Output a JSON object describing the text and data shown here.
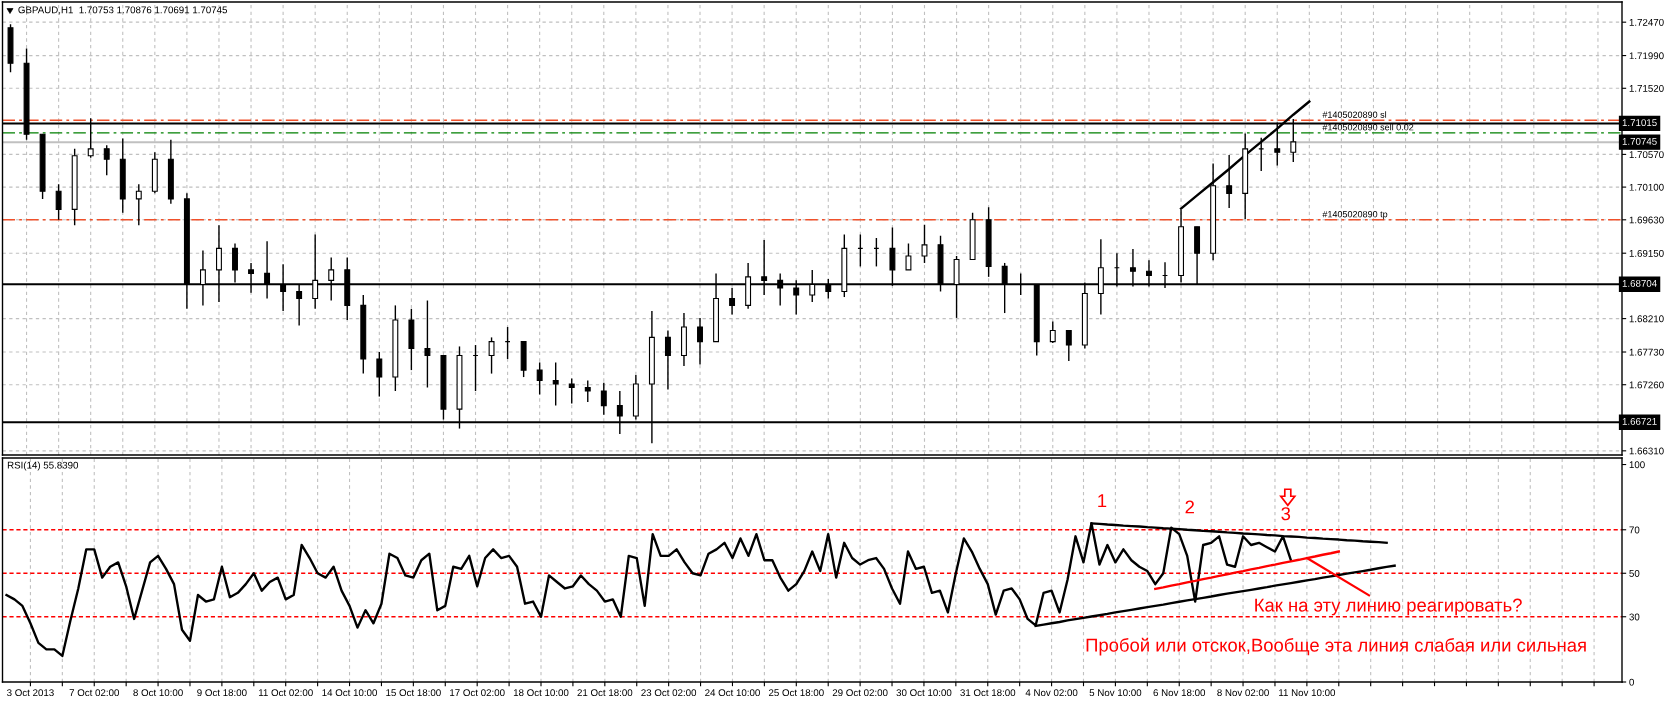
{
  "chart_data": [
    {
      "type": "candlestick",
      "title": "GBPAUD,H1  1.70753 1.70876 1.70691 1.70745",
      "color": "#000000",
      "categories": [
        null,
        null,
        null,
        null,
        null,
        null,
        null,
        null,
        null,
        null,
        null,
        null,
        null,
        null,
        null,
        null,
        null,
        null,
        null,
        null,
        null,
        null,
        null,
        null,
        null,
        null,
        null,
        null,
        null,
        null,
        null,
        null,
        null,
        null,
        null,
        null,
        null,
        null,
        null,
        null,
        null,
        null,
        null,
        null,
        null,
        null,
        null,
        null,
        null,
        null,
        null,
        null,
        null,
        null,
        null,
        null,
        null,
        null,
        null,
        null,
        null,
        null,
        null,
        null,
        null,
        null,
        null,
        null,
        null,
        null,
        null,
        null,
        null,
        null,
        null,
        null,
        null,
        null,
        null,
        null,
        null,
        null,
        null,
        null,
        null,
        null,
        null,
        null,
        null,
        null,
        null,
        null,
        null,
        null,
        null,
        null,
        null,
        null,
        null,
        null,
        null
      ],
      "ohlc": [
        [
          1.7239,
          1.7244,
          1.7175,
          1.7188
        ],
        [
          1.7188,
          1.7209,
          1.7078,
          1.7086
        ],
        [
          1.7086,
          1.7086,
          1.6993,
          1.7004
        ],
        [
          1.7004,
          1.7014,
          1.6963,
          1.6978
        ],
        [
          1.6978,
          1.7065,
          1.6955,
          1.7055
        ],
        [
          1.7055,
          1.7109,
          1.7052,
          1.7065
        ],
        [
          1.7065,
          1.707,
          1.7027,
          1.705
        ],
        [
          1.705,
          1.708,
          1.6973,
          1.6993
        ],
        [
          1.6993,
          1.7014,
          1.6955,
          1.7004
        ],
        [
          1.7004,
          1.706,
          1.7001,
          1.705
        ],
        [
          1.705,
          1.7078,
          1.6986,
          1.6993
        ],
        [
          1.6993,
          1.7001,
          1.6835,
          1.687
        ],
        [
          1.687,
          1.6919,
          1.684,
          1.6891
        ],
        [
          1.6891,
          1.6955,
          1.6845,
          1.6922
        ],
        [
          1.6922,
          1.6929,
          1.6873,
          1.6891
        ],
        [
          1.6891,
          1.6901,
          1.6858,
          1.6886
        ],
        [
          1.6886,
          1.6932,
          1.685,
          1.687
        ],
        [
          1.687,
          1.6899,
          1.6832,
          1.686
        ],
        [
          1.686,
          1.687,
          1.6811,
          1.685
        ],
        [
          1.685,
          1.6942,
          1.6835,
          1.6876
        ],
        [
          1.6876,
          1.6909,
          1.6847,
          1.6891
        ],
        [
          1.6891,
          1.6909,
          1.6819,
          1.684
        ],
        [
          1.684,
          1.6855,
          1.6742,
          1.6763
        ],
        [
          1.6763,
          1.6773,
          1.6709,
          1.6737
        ],
        [
          1.6737,
          1.684,
          1.6717,
          1.6819
        ],
        [
          1.6819,
          1.6835,
          1.6747,
          1.6778
        ],
        [
          1.6778,
          1.6847,
          1.6722,
          1.6768
        ],
        [
          1.6768,
          1.6768,
          1.6676,
          1.6691
        ],
        [
          1.6691,
          1.6781,
          1.6663,
          1.6768
        ],
        [
          1.6768,
          1.6783,
          1.6717,
          1.6768
        ],
        [
          1.6768,
          1.6794,
          1.6742,
          1.6788
        ],
        [
          1.6788,
          1.6809,
          1.6763,
          1.6788
        ],
        [
          1.6788,
          1.6788,
          1.6737,
          1.6747
        ],
        [
          1.6747,
          1.6758,
          1.6712,
          1.6732
        ],
        [
          1.6732,
          1.6758,
          1.6696,
          1.6727
        ],
        [
          1.6727,
          1.6735,
          1.6699,
          1.6722
        ],
        [
          1.6722,
          1.6732,
          1.6701,
          1.6717
        ],
        [
          1.6717,
          1.6729,
          1.6683,
          1.6696
        ],
        [
          1.6696,
          1.6717,
          1.6655,
          1.6681
        ],
        [
          1.6681,
          1.674,
          1.6676,
          1.6727
        ],
        [
          1.6727,
          1.6832,
          1.6642,
          1.6794
        ],
        [
          1.6794,
          1.6804,
          1.6719,
          1.6768
        ],
        [
          1.6768,
          1.6829,
          1.6753,
          1.6809
        ],
        [
          1.6809,
          1.6822,
          1.6755,
          1.6788
        ],
        [
          1.6788,
          1.6886,
          1.6788,
          1.685
        ],
        [
          1.685,
          1.6865,
          1.6827,
          1.684
        ],
        [
          1.684,
          1.6901,
          1.6835,
          1.6881
        ],
        [
          1.6881,
          1.6934,
          1.6855,
          1.6876
        ],
        [
          1.6876,
          1.6886,
          1.684,
          1.6865
        ],
        [
          1.6865,
          1.6876,
          1.6827,
          1.6855
        ],
        [
          1.6855,
          1.6891,
          1.6845,
          1.687
        ],
        [
          1.687,
          1.6878,
          1.685,
          1.686
        ],
        [
          1.686,
          1.6942,
          1.6852,
          1.6922
        ],
        [
          1.6922,
          1.6942,
          1.6896,
          1.6922
        ],
        [
          1.6922,
          1.6937,
          1.6896,
          1.6922
        ],
        [
          1.6922,
          1.6952,
          1.6868,
          1.6891
        ],
        [
          1.6891,
          1.6929,
          1.6891,
          1.6911
        ],
        [
          1.6911,
          1.6956,
          1.6901,
          1.6927
        ],
        [
          1.6927,
          1.694,
          1.686,
          1.687
        ],
        [
          1.687,
          1.6911,
          1.6822,
          1.6906
        ],
        [
          1.6906,
          1.6973,
          1.6906,
          1.6963
        ],
        [
          1.6963,
          1.6981,
          1.6881,
          1.6896
        ],
        [
          1.6896,
          1.6901,
          1.6829,
          1.687
        ],
        [
          1.687,
          1.6886,
          1.6855,
          1.687
        ],
        [
          1.687,
          1.687,
          1.6768,
          1.6788
        ],
        [
          1.6788,
          1.6817,
          1.6786,
          1.6804
        ],
        [
          1.6804,
          1.6804,
          1.676,
          1.6783
        ],
        [
          1.6783,
          1.6873,
          1.6778,
          1.6857
        ],
        [
          1.6857,
          1.6935,
          1.6827,
          1.6894
        ],
        [
          1.6894,
          1.6915,
          1.6867,
          1.6894
        ],
        [
          1.6894,
          1.6921,
          1.6867,
          1.6889
        ],
        [
          1.6889,
          1.6905,
          1.6867,
          1.6883
        ],
        [
          1.6883,
          1.6902,
          1.6865,
          1.6883
        ],
        [
          1.6883,
          1.6977,
          1.6873,
          1.6953
        ],
        [
          1.6953,
          1.6953,
          1.687,
          1.6915
        ],
        [
          1.6915,
          1.7044,
          1.6905,
          1.7012
        ],
        [
          1.7012,
          1.7056,
          1.698,
          1.7001
        ],
        [
          1.7001,
          1.7087,
          1.6964,
          1.7065
        ],
        [
          1.7065,
          1.7081,
          1.7033,
          1.7065
        ],
        [
          1.7065,
          1.7103,
          1.7041,
          1.706
        ],
        [
          1.706,
          1.7108,
          1.7046,
          1.7075
        ],
        null,
        null,
        null,
        null,
        null,
        null,
        null,
        null,
        null,
        null,
        null,
        null,
        null,
        null,
        null,
        null,
        null,
        null,
        null,
        null
      ],
      "series": [
        {
          "type": "line",
          "color": "#000000",
          "values": [
            null,
            null,
            null,
            null,
            null,
            null,
            null,
            null,
            null,
            null,
            null,
            null,
            null,
            null,
            null,
            null,
            null,
            null,
            null,
            null,
            null,
            null,
            null,
            null,
            null,
            null,
            null,
            null,
            null,
            null,
            null,
            null,
            null,
            null,
            null,
            null,
            null,
            null,
            null,
            null,
            null,
            null,
            null,
            null,
            null,
            null,
            null,
            null,
            null,
            null,
            null,
            null,
            null,
            null,
            null,
            null,
            null,
            null,
            null,
            null,
            null,
            null,
            null,
            null,
            null,
            null,
            null,
            null,
            null,
            null,
            null,
            null,
            null,
            1.6979,
            1.6998,
            1.7017,
            1.7036,
            1.7056,
            1.7075,
            1.7094,
            1.7114,
            1.7133,
            null,
            null,
            null,
            null,
            null,
            null,
            null,
            null,
            null,
            null,
            null,
            null,
            null,
            null,
            null,
            null,
            null,
            null,
            null
          ]
        }
      ],
      "ylim": [
        1.6625,
        1.7276
      ],
      "yticks": [
        {
          "value": 1.7247,
          "label": "1.72470"
        },
        {
          "value": 1.7199,
          "label": "1.71990"
        },
        {
          "value": 1.7152,
          "label": "1.71520"
        },
        {
          "value": 1.7057,
          "label": "1.70570"
        },
        {
          "value": 1.701,
          "label": "1.70100"
        },
        {
          "value": 1.6963,
          "label": "1.69630"
        },
        {
          "value": 1.6915,
          "label": "1.69150"
        },
        {
          "value": 1.6821,
          "label": "1.68210"
        },
        {
          "value": 1.6773,
          "label": "1.67730"
        },
        {
          "value": 1.6726,
          "label": "1.67260"
        },
        {
          "value": 1.6631,
          "label": "1.66310"
        }
      ],
      "grid": true,
      "ref_lines": [
        {
          "axis": "y",
          "value": 1.7106,
          "label": "#1405020890 sl",
          "color": "#f0502a",
          "line_style": "dashed"
        },
        {
          "axis": "y",
          "value": 1.71015,
          "label": "1.71015",
          "color": "#000000",
          "line_style": "solid"
        },
        {
          "axis": "y",
          "value": 1.7088,
          "label": "#1405020890 sell 0.02",
          "color": "#008000",
          "line_style": "dashed"
        },
        {
          "axis": "y",
          "value": 1.70745,
          "label": "1.70745",
          "color": "#c0c0c0",
          "line_style": "solid"
        },
        {
          "axis": "y",
          "value": 1.6963,
          "label": "#1405020890 tp",
          "color": "#f0502a",
          "line_style": "dashed"
        },
        {
          "axis": "y",
          "value": 1.68704,
          "label": "1.68704",
          "color": "#000000",
          "line_style": "solid"
        },
        {
          "axis": "y",
          "value": 1.66721,
          "label": "1.66721",
          "color": "#000000",
          "line_style": "solid"
        }
      ]
    },
    {
      "type": "line",
      "title": "RSI(14) 55.8390",
      "categories": [
        null,
        null,
        null,
        "3 Oct 2013",
        null,
        null,
        null,
        null,
        null,
        null,
        null,
        "7 Oct 02:00",
        null,
        null,
        null,
        null,
        null,
        null,
        null,
        "8 Oct 10:00",
        null,
        null,
        null,
        null,
        null,
        null,
        null,
        "9 Oct 18:00",
        null,
        null,
        null,
        null,
        null,
        null,
        null,
        "11 Oct 02:00",
        null,
        null,
        null,
        null,
        null,
        null,
        null,
        "14 Oct 10:00",
        null,
        null,
        null,
        null,
        null,
        null,
        null,
        "15 Oct 18:00",
        null,
        null,
        null,
        null,
        null,
        null,
        null,
        "17 Oct 02:00",
        null,
        null,
        null,
        null,
        null,
        null,
        null,
        "18 Oct 10:00",
        null,
        null,
        null,
        null,
        null,
        null,
        null,
        "21 Oct 18:00",
        null,
        null,
        null,
        null,
        null,
        null,
        null,
        "23 Oct 02:00",
        null,
        null,
        null,
        null,
        null,
        null,
        null,
        "24 Oct 10:00",
        null,
        null,
        null,
        null,
        null,
        null,
        null,
        "25 Oct 18:00",
        null,
        null,
        null,
        null,
        null,
        null,
        null,
        "29 Oct 02:00",
        null,
        null,
        null,
        null,
        null,
        null,
        null,
        "30 Oct 10:00",
        null,
        null,
        null,
        null,
        null,
        null,
        null,
        "31 Oct 18:00",
        null,
        null,
        null,
        null,
        null,
        null,
        null,
        "4 Nov 02:00",
        null,
        null,
        null,
        null,
        null,
        null,
        null,
        "5 Nov 10:00",
        null,
        null,
        null,
        null,
        null,
        null,
        null,
        "6 Nov 18:00",
        null,
        null,
        null,
        null,
        null,
        null,
        null,
        "8 Nov 02:00",
        null,
        null,
        null,
        null,
        null,
        null,
        null,
        "11 Nov 10:00",
        null,
        null,
        null,
        null,
        null,
        null,
        null,
        null,
        null,
        null,
        null,
        null,
        null,
        null,
        null,
        null,
        null,
        null,
        null,
        null,
        null,
        null,
        null,
        null,
        null,
        null,
        null,
        null,
        null,
        null,
        null,
        null,
        null,
        null,
        null,
        null,
        null,
        null,
        null
      ],
      "series": [
        {
          "color": "#000000",
          "values": [
            40,
            38,
            35,
            27,
            18,
            15,
            15,
            12,
            28,
            43,
            61,
            61,
            48,
            53,
            55,
            44,
            29,
            42,
            55,
            58,
            52,
            45,
            24,
            19,
            40,
            37,
            38,
            53,
            39,
            41,
            45,
            50,
            42,
            46,
            48,
            38,
            40,
            63,
            57,
            50,
            48,
            53,
            42,
            35,
            25,
            33,
            27,
            36,
            59,
            57,
            49,
            48,
            56,
            59,
            33,
            35,
            53,
            52,
            58,
            44,
            57,
            61,
            57,
            58,
            53,
            36,
            37,
            30,
            49,
            46,
            43,
            44,
            49,
            45,
            42,
            37,
            38,
            30,
            58,
            57,
            35,
            68,
            58,
            58,
            61,
            55,
            50,
            49,
            59,
            61,
            64,
            57,
            66,
            58,
            68,
            56,
            56,
            48,
            42,
            45,
            51,
            60,
            51,
            68,
            48,
            64,
            57,
            54,
            56,
            57,
            52,
            43,
            36,
            60,
            52,
            53,
            41,
            42,
            32,
            50,
            66,
            60,
            52,
            45,
            31,
            42,
            43,
            38,
            29,
            26,
            41,
            42,
            32,
            47,
            67,
            55,
            73,
            54,
            63,
            55,
            61,
            56,
            53,
            51,
            45,
            50,
            71,
            68,
            58,
            37,
            63,
            64,
            67,
            54,
            53,
            67,
            63,
            64,
            62,
            60,
            67,
            56,
            null,
            null,
            null,
            null,
            null,
            null,
            null,
            null,
            null,
            null,
            null,
            null,
            null,
            null,
            null,
            null,
            null,
            null,
            null,
            null,
            null,
            null,
            null,
            null,
            null,
            null,
            null,
            null,
            null,
            null,
            null,
            null,
            null,
            null,
            null,
            null,
            null,
            null,
            null,
            null,
            null
          ]
        },
        {
          "color": "#000000",
          "values": [
            null,
            null,
            null,
            null,
            null,
            null,
            null,
            null,
            null,
            null,
            null,
            null,
            null,
            null,
            null,
            null,
            null,
            null,
            null,
            null,
            null,
            null,
            null,
            null,
            null,
            null,
            null,
            null,
            null,
            null,
            null,
            null,
            null,
            null,
            null,
            null,
            null,
            null,
            null,
            null,
            null,
            null,
            null,
            null,
            null,
            null,
            null,
            null,
            null,
            null,
            null,
            null,
            null,
            null,
            null,
            null,
            null,
            null,
            null,
            null,
            null,
            null,
            null,
            null,
            null,
            null,
            null,
            null,
            null,
            null,
            null,
            null,
            null,
            null,
            null,
            null,
            null,
            null,
            null,
            null,
            null,
            null,
            null,
            null,
            null,
            null,
            null,
            null,
            null,
            null,
            null,
            null,
            null,
            null,
            null,
            null,
            null,
            null,
            null,
            null,
            null,
            null,
            null,
            null,
            null,
            null,
            null,
            null,
            null,
            null,
            null,
            null,
            null,
            null,
            null,
            null,
            null,
            null,
            null,
            null,
            null,
            null,
            null,
            null,
            null,
            null,
            null,
            null,
            null,
            null,
            null,
            null,
            null,
            null,
            null,
            null,
            72.9,
            72.7,
            72.4,
            72.2,
            71.9,
            71.7,
            71.5,
            71.2,
            71.0,
            70.7,
            70.5,
            70.3,
            70.0,
            69.8,
            69.5,
            69.3,
            69.1,
            68.8,
            68.6,
            68.3,
            68.1,
            67.9,
            67.6,
            67.4,
            67.1,
            66.9,
            66.7,
            66.4,
            66.2,
            65.9,
            65.7,
            65.5,
            65.2,
            65.0,
            64.7,
            64.5,
            64.3,
            64.0,
            null,
            null,
            null,
            null,
            null,
            null,
            null,
            null,
            null,
            null,
            null,
            null,
            null,
            null,
            null,
            null,
            null,
            null,
            null,
            null,
            null,
            null,
            null,
            null,
            null,
            null,
            null,
            null,
            null
          ]
        },
        {
          "color": "#000000",
          "values": [
            null,
            null,
            null,
            null,
            null,
            null,
            null,
            null,
            null,
            null,
            null,
            null,
            null,
            null,
            null,
            null,
            null,
            null,
            null,
            null,
            null,
            null,
            null,
            null,
            null,
            null,
            null,
            null,
            null,
            null,
            null,
            null,
            null,
            null,
            null,
            null,
            null,
            null,
            null,
            null,
            null,
            null,
            null,
            null,
            null,
            null,
            null,
            null,
            null,
            null,
            null,
            null,
            null,
            null,
            null,
            null,
            null,
            null,
            null,
            null,
            null,
            null,
            null,
            null,
            null,
            null,
            null,
            null,
            null,
            null,
            null,
            null,
            null,
            null,
            null,
            null,
            null,
            null,
            null,
            null,
            null,
            null,
            null,
            null,
            null,
            null,
            null,
            null,
            null,
            null,
            null,
            null,
            null,
            null,
            null,
            null,
            null,
            null,
            null,
            null,
            null,
            null,
            null,
            null,
            null,
            null,
            null,
            null,
            null,
            null,
            null,
            null,
            null,
            null,
            null,
            null,
            null,
            null,
            null,
            null,
            null,
            null,
            null,
            null,
            null,
            null,
            null,
            null,
            null,
            25.8,
            26.4,
            27.0,
            27.6,
            28.3,
            28.9,
            29.5,
            30.1,
            30.7,
            31.3,
            32.0,
            32.6,
            33.2,
            33.8,
            34.4,
            35.0,
            35.6,
            36.3,
            36.9,
            37.5,
            38.1,
            38.7,
            39.3,
            40.0,
            40.6,
            41.2,
            41.8,
            42.4,
            43.0,
            43.6,
            44.3,
            44.9,
            45.5,
            46.1,
            46.7,
            47.3,
            48.0,
            48.6,
            49.2,
            49.8,
            50.4,
            51.0,
            51.6,
            52.3,
            52.9,
            53.5,
            null,
            null,
            null,
            null,
            null,
            null,
            null,
            null,
            null,
            null,
            null,
            null,
            null,
            null,
            null,
            null,
            null,
            null,
            null,
            null,
            null,
            null,
            null,
            null,
            null,
            null,
            null,
            null
          ]
        },
        {
          "color": "#ff0000",
          "values": [
            null,
            null,
            null,
            null,
            null,
            null,
            null,
            null,
            null,
            null,
            null,
            null,
            null,
            null,
            null,
            null,
            null,
            null,
            null,
            null,
            null,
            null,
            null,
            null,
            null,
            null,
            null,
            null,
            null,
            null,
            null,
            null,
            null,
            null,
            null,
            null,
            null,
            null,
            null,
            null,
            null,
            null,
            null,
            null,
            null,
            null,
            null,
            null,
            null,
            null,
            null,
            null,
            null,
            null,
            null,
            null,
            null,
            null,
            null,
            null,
            null,
            null,
            null,
            null,
            null,
            null,
            null,
            null,
            null,
            null,
            null,
            null,
            null,
            null,
            null,
            null,
            null,
            null,
            null,
            null,
            null,
            null,
            null,
            null,
            null,
            null,
            null,
            null,
            null,
            null,
            null,
            null,
            null,
            null,
            null,
            null,
            null,
            null,
            null,
            null,
            null,
            null,
            null,
            null,
            null,
            null,
            null,
            null,
            null,
            null,
            null,
            null,
            null,
            null,
            null,
            null,
            null,
            null,
            null,
            null,
            null,
            null,
            null,
            null,
            null,
            null,
            null,
            null,
            null,
            null,
            null,
            null,
            null,
            null,
            null,
            null,
            null,
            null,
            null,
            null,
            null,
            null,
            null,
            null,
            42.8,
            43.5,
            44.3,
            45.0,
            45.8,
            46.5,
            47.3,
            48.0,
            48.8,
            49.5,
            50.3,
            51.0,
            51.8,
            52.5,
            53.3,
            54.0,
            54.8,
            55.5,
            56.2,
            57.0,
            57.7,
            58.5,
            59.2,
            60.0,
            null,
            null,
            null,
            null,
            null,
            null,
            null,
            null,
            null,
            null,
            null,
            null,
            null,
            null,
            null,
            null,
            null,
            null,
            null,
            null,
            null,
            null,
            null,
            null,
            null,
            null,
            null,
            null,
            null,
            null,
            null,
            null,
            null,
            null,
            null
          ]
        }
      ],
      "ylim": [
        0,
        103
      ],
      "yticks": [
        0,
        30,
        50,
        70,
        100
      ],
      "grid": "x",
      "ref_lines": [
        {
          "axis": "y",
          "value": 70,
          "color": "#ff0000",
          "line_style": "dotted"
        },
        {
          "axis": "y",
          "value": 50,
          "color": "#ff0000",
          "line_style": "dotted"
        },
        {
          "axis": "y",
          "value": 30,
          "color": "#ff0000",
          "line_style": "dotted"
        }
      ],
      "annotations": [
        {
          "text": "1",
          "y": 73
        },
        {
          "text": "2",
          "y": 71
        },
        {
          "text": "3",
          "y": 67
        },
        {
          "text": "Как на эту линию реагировать?",
          "x": "11 Nov 10:00",
          "y": 57
        },
        "Пробой или отскок,Вообще эта линия слабая или сильная"
      ]
    }
  ]
}
